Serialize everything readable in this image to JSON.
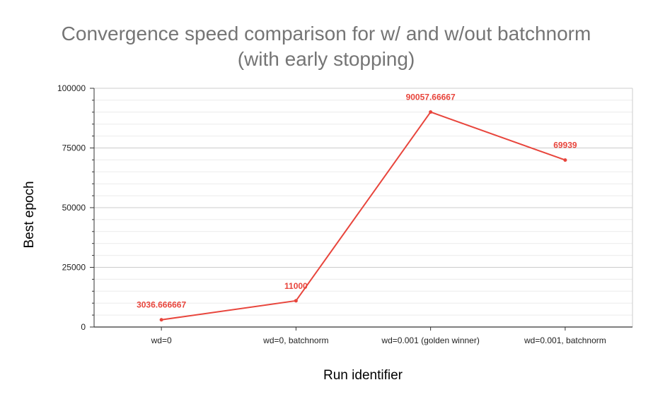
{
  "chart_data": {
    "type": "line",
    "title": [
      "Convergence speed comparison for w/ and w/out batchnorm",
      "(with early stopping)"
    ],
    "xlabel": "Run identifier",
    "ylabel": "Best epoch",
    "categories": [
      "wd=0",
      "wd=0, batchnorm",
      "wd=0.001 (golden winner)",
      "wd=0.001, batchnorm"
    ],
    "series": [
      {
        "values": [
          3036.666667,
          11000,
          90057.66667,
          69939
        ],
        "labels": [
          "3036.666667",
          "11000",
          "90057.66667",
          "69939"
        ]
      }
    ],
    "ylim": [
      0,
      100000
    ],
    "yticks": [
      0,
      25000,
      50000,
      75000,
      100000
    ],
    "ytick_labels": [
      "0",
      "25000",
      "50000",
      "75000",
      "100000"
    ],
    "grid": true,
    "legend": "none",
    "colors": {
      "line": "#e8453c",
      "grid_major": "#cccccc",
      "grid_minor": "#ebebeb",
      "axis": "#333333",
      "title": "#757575"
    }
  }
}
